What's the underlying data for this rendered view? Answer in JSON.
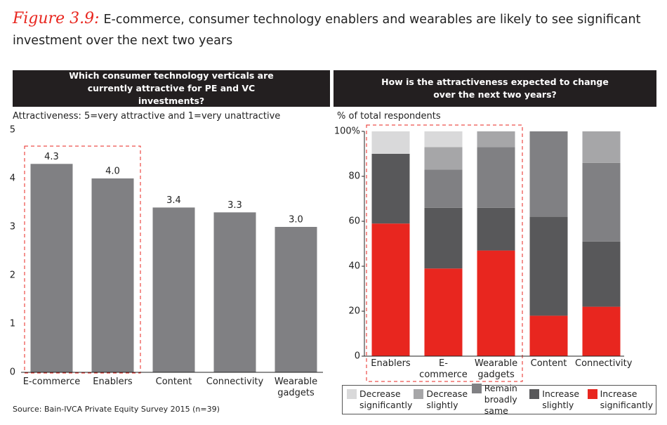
{
  "figure_label": "Figure 3.9:",
  "title": "E-commerce, consumer technology enablers and wearables are likely to see significant investment over the next two years",
  "source": "Source: Bain-IVCA Private Equity Survey 2015 (n=39)",
  "chart_data": [
    {
      "type": "bar",
      "header": "Which consumer technology verticals are currently attractive for PE and VC investments?",
      "y_label": "Attractiveness: 5=very attractive and 1=very unattractive",
      "categories": [
        "E-commerce",
        "Enablers",
        "Content",
        "Connectivity",
        "Wearable gadgets"
      ],
      "values": [
        4.3,
        4.0,
        3.4,
        3.3,
        3.0
      ],
      "value_labels": [
        "4.3",
        "4.0",
        "3.4",
        "3.3",
        "3.0"
      ],
      "color": "#808083",
      "ylim": [
        0,
        5
      ],
      "yticks": [
        0,
        1,
        2,
        3,
        4,
        5
      ]
    },
    {
      "type": "stacked_bar",
      "header": "How is the attractiveness expected to change over the next two years?",
      "y_label": "% of total respondents",
      "categories": [
        "Enablers",
        "E-commerce",
        "Wearable gadgets",
        "Content",
        "Connectivity"
      ],
      "series": [
        {
          "name": "Decrease significantly",
          "color": "#d9d9da",
          "values": [
            10,
            7,
            0,
            0,
            0
          ]
        },
        {
          "name": "Decrease slightly",
          "color": "#a6a6a8",
          "values": [
            0,
            10,
            7,
            0,
            14
          ]
        },
        {
          "name": "Remain broadly same",
          "color": "#808083",
          "values": [
            0,
            17,
            27,
            38,
            35
          ]
        },
        {
          "name": "Increase slightly",
          "color": "#58585a",
          "values": [
            31,
            27,
            19,
            44,
            29
          ]
        },
        {
          "name": "Increase significantly",
          "color": "#e8261f",
          "values": [
            59,
            39,
            47,
            18,
            22
          ]
        }
      ],
      "ylim": [
        0,
        100
      ],
      "yticks": [
        0,
        20,
        40,
        60,
        80,
        {
          "value": 100,
          "label": "100%"
        }
      ],
      "legend": "bottom"
    }
  ]
}
